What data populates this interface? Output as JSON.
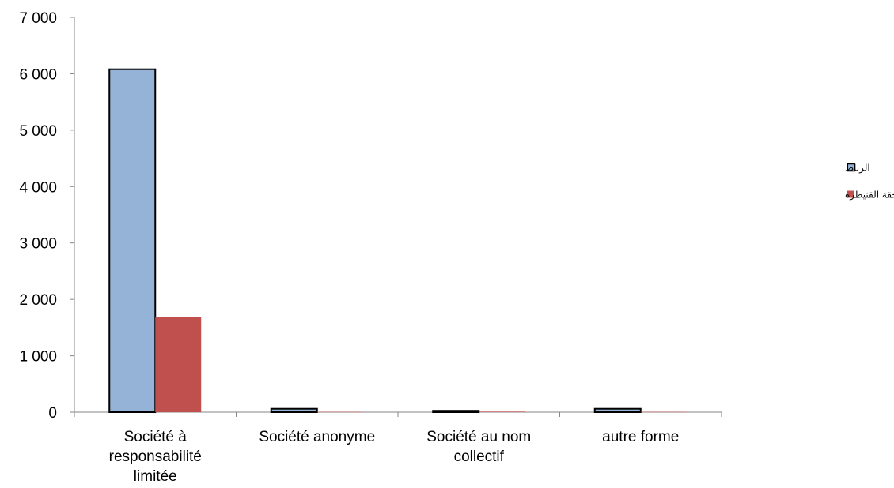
{
  "chart_data": {
    "type": "bar",
    "categories": [
      [
        "Société à",
        "responsabilité",
        "limitée"
      ],
      [
        "Société anonyme"
      ],
      [
        "Société au nom",
        "collectif"
      ],
      [
        "autre forme"
      ]
    ],
    "series": [
      {
        "name": "الرباط",
        "color": "#95b3d7",
        "outlined": true,
        "values": [
          6080,
          60,
          25,
          60
        ]
      },
      {
        "name": "ملحقة القنيطرة",
        "color": "#c0504d",
        "outlined": false,
        "values": [
          1690,
          5,
          10,
          5
        ]
      }
    ],
    "yticks": [
      "0",
      "1 000",
      "2 000",
      "3 000",
      "4 000",
      "5 000",
      "6 000",
      "7 000"
    ],
    "ylim": [
      0,
      7000
    ],
    "grid": false,
    "legend_position": "right",
    "title": "",
    "xlabel": "",
    "ylabel": ""
  }
}
